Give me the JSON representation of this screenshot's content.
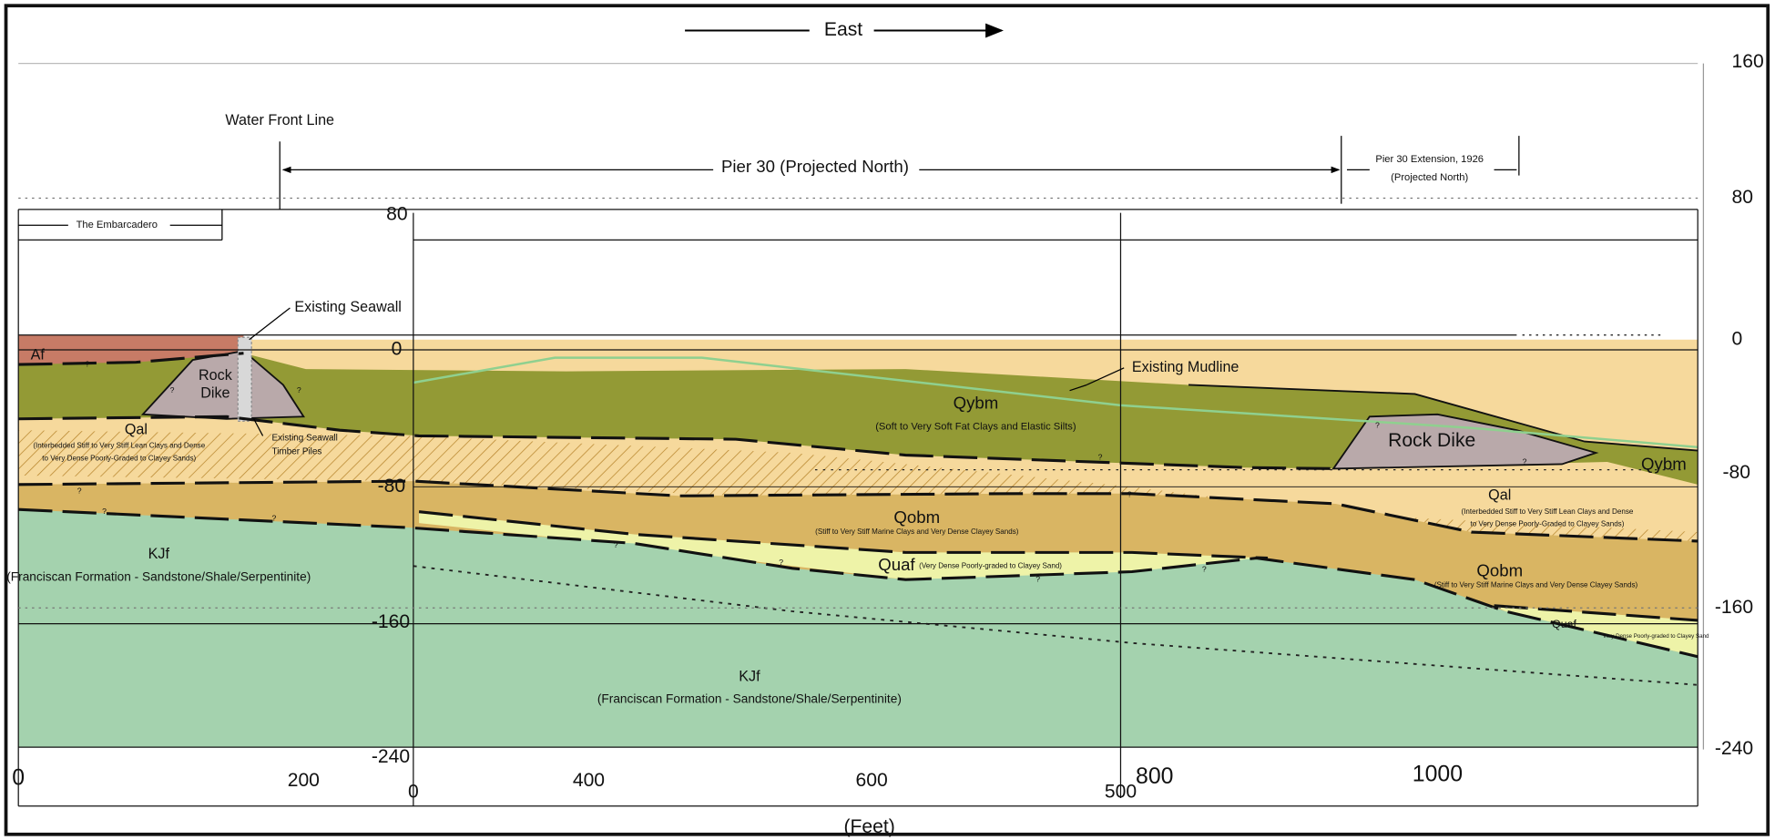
{
  "header": {
    "direction": "East"
  },
  "elevation_right": [
    "160",
    "80",
    "0",
    "-80",
    "-160",
    "-240"
  ],
  "elevation_inner": [
    "80",
    "0",
    "-80",
    "-160",
    "-240"
  ],
  "distance_outer": [
    "0",
    "200",
    "400",
    "600",
    "800",
    "1000"
  ],
  "distance_inner": [
    "0",
    "500"
  ],
  "distance_unit": "(Feet)",
  "labels": {
    "water_front_line": "Water Front Line",
    "pier": "Pier 30 (Projected North)",
    "pier_extension": "Pier 30 Extension, 1926",
    "pier_extension_note": "(Projected North)",
    "embarcadero": "The Embarcadero",
    "seawall": "Existing Seawall",
    "timber_piles": [
      "Existing Seawall",
      "Timber Piles"
    ],
    "mudline": "Existing Mudline",
    "rock_dike_left": [
      "Rock",
      "Dike"
    ],
    "rock_dike_right": "Rock Dike"
  },
  "units": {
    "af": {
      "name": "Af"
    },
    "qal_left": {
      "name": "Qal",
      "description": [
        "(Interbedded Stiff to Very Stiff Lean Clays and Dense",
        "to Very Dense Poorly-Graded to Clayey Sands)"
      ]
    },
    "qybm": {
      "name": "Qybm",
      "description": [
        "(Soft to Very Soft Fat Clays and Elastic Silts)"
      ]
    },
    "qybm_right": {
      "name": "Qybm"
    },
    "qobm": {
      "name": "Qobm",
      "description": [
        "(Stiff to Very Stiff Marine Clays  and Very Dense Clayey Sands)"
      ]
    },
    "quaf": {
      "name": "Quaf",
      "description": [
        "(Very Dense Poorly-graded to Clayey Sand)"
      ]
    },
    "qal_right": {
      "name": "Qal",
      "description": [
        "(Interbedded Stiff to Very Stiff Lean Clays and Dense",
        "to Very Dense Poorly-Graded to Clayey Sands)"
      ]
    },
    "qobm_right": {
      "name": "Qobm",
      "description": [
        "(Stiff to Very Stiff Marine Clays  and Very Dense Clayey Sands)"
      ]
    },
    "quaf_right": {
      "name": "Quaf",
      "description": [
        "Very Dense Poorly-graded to Clayey Sand"
      ]
    },
    "kjf_left": {
      "name": "KJf",
      "description": [
        "(Franciscan Formation - Sandstone/Shale/Serpentinite)"
      ]
    },
    "kjf_center": {
      "name": "KJf",
      "description": [
        "(Franciscan Formation - Sandstone/Shale/Serpentinite)"
      ]
    }
  },
  "question_marks": [
    "?",
    "?",
    "?",
    "?",
    "?",
    "?",
    "?",
    "?",
    "?",
    "?",
    "?",
    "?",
    "?",
    "?"
  ]
}
